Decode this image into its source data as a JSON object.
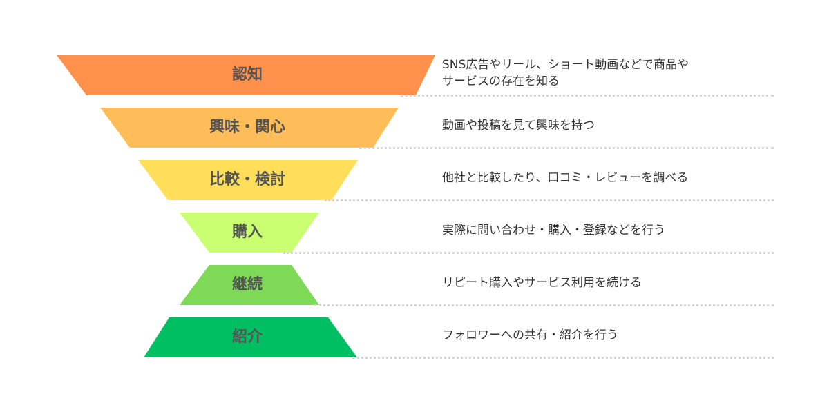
{
  "stages": [
    {
      "label": "認知",
      "description": "SNS広告やリール、ショート動画などで商品や\nサービスの存在を知る",
      "color": "#ff914d"
    },
    {
      "label": "興味・関心",
      "description": "動画や投稿を見て興味を持つ",
      "color": "#ffbd59"
    },
    {
      "label": "比較・検討",
      "description": "他社と比較したり、口コミ・レビューを調べる",
      "color": "#ffde59"
    },
    {
      "label": "購入",
      "description": "実際に問い合わせ・購入・登録などを行う",
      "color": "#c9ff70"
    },
    {
      "label": "継続",
      "description": "リピート購入やサービス利用を続ける",
      "color": "#7ed957"
    },
    {
      "label": "紹介",
      "description": "フォロワーへの共有・紹介を行う",
      "color": "#00bf63"
    }
  ],
  "dot_color": "#d6d6d6"
}
